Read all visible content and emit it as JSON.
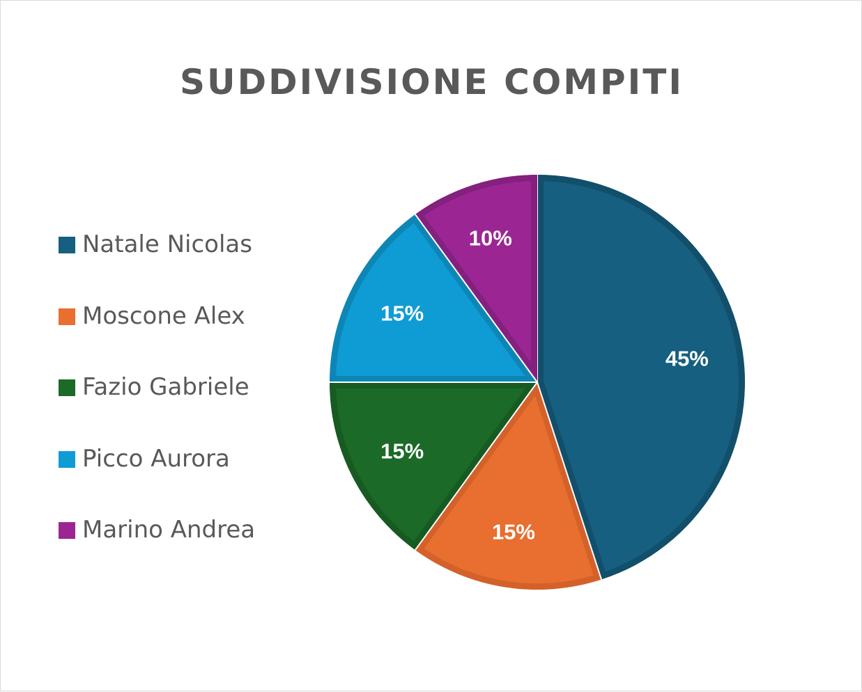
{
  "chart_data": {
    "type": "pie",
    "title": "SUDDIVISIONE COMPITI",
    "categories": [
      "Natale Nicolas",
      "Moscone Alex",
      "Fazio Gabriele",
      "Picco Aurora",
      "Marino Andrea"
    ],
    "values": [
      45,
      15,
      15,
      15,
      10
    ],
    "data_labels": [
      "45%",
      "15%",
      "15%",
      "15%",
      "10%"
    ],
    "colors": [
      "#165f80",
      "#e86f30",
      "#1b6a28",
      "#0f9cd4",
      "#9b2693"
    ],
    "border_colors": [
      "#124f6b",
      "#d4612a",
      "#175a22",
      "#0d86b6",
      "#84207d"
    ],
    "legend_position": "left",
    "start_angle_deg": 0,
    "direction": "clockwise"
  }
}
